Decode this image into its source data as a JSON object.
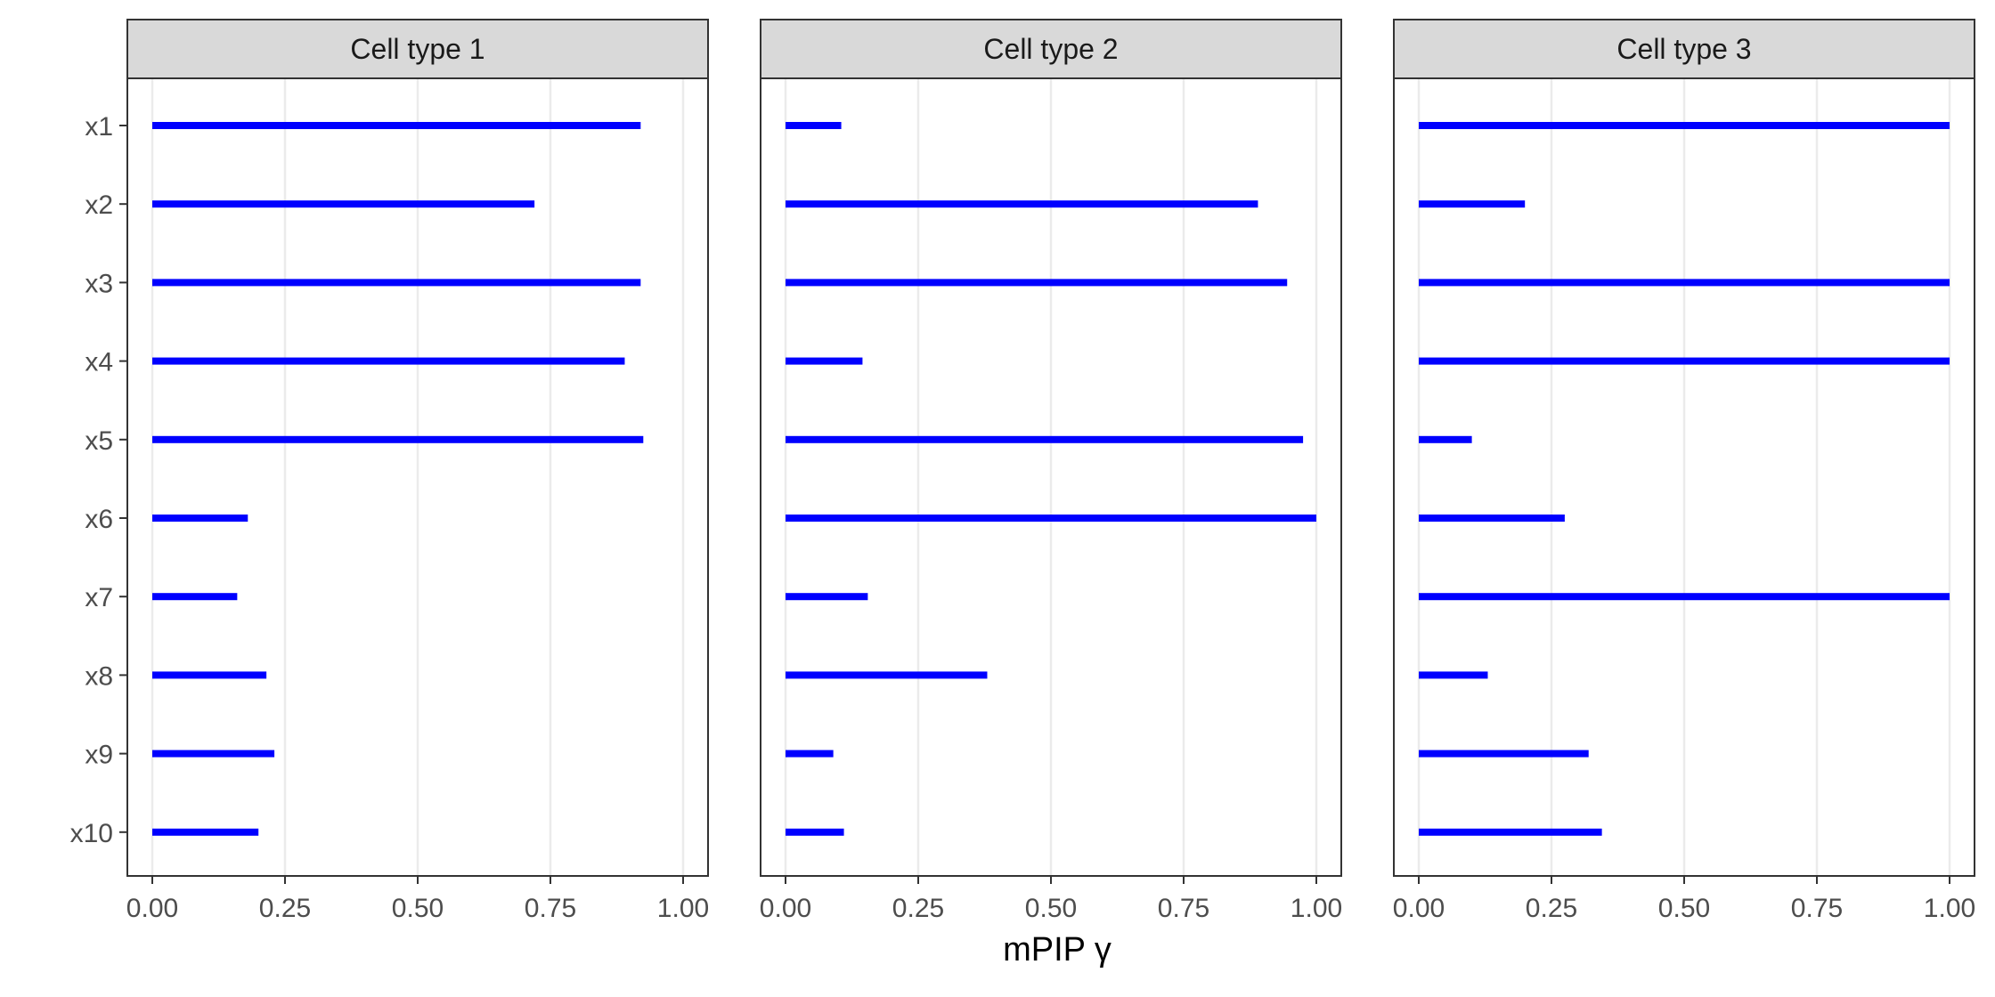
{
  "chart_data": {
    "type": "bar",
    "orientation": "horizontal",
    "faceted": true,
    "xlabel": "mPIP γ",
    "ylabel": "",
    "xlim": [
      0,
      1
    ],
    "x_ticks": [
      "0.00",
      "0.25",
      "0.50",
      "0.75",
      "1.00"
    ],
    "x_tick_values": [
      0,
      0.25,
      0.5,
      0.75,
      1
    ],
    "grid": true,
    "legend": "none",
    "bar_color": "#0000ff",
    "categories": [
      "x1",
      "x2",
      "x3",
      "x4",
      "x5",
      "x6",
      "x7",
      "x8",
      "x9",
      "x10"
    ],
    "panels": [
      {
        "title": "Cell type 1",
        "values": [
          0.92,
          0.72,
          0.92,
          0.89,
          0.925,
          0.18,
          0.16,
          0.215,
          0.23,
          0.2
        ]
      },
      {
        "title": "Cell type 2",
        "values": [
          0.105,
          0.89,
          0.945,
          0.145,
          0.975,
          1.0,
          0.155,
          0.38,
          0.09,
          0.11
        ]
      },
      {
        "title": "Cell type 3",
        "values": [
          1.0,
          0.2,
          1.0,
          1.0,
          0.1,
          0.275,
          1.0,
          0.13,
          0.32,
          0.345
        ]
      }
    ]
  }
}
